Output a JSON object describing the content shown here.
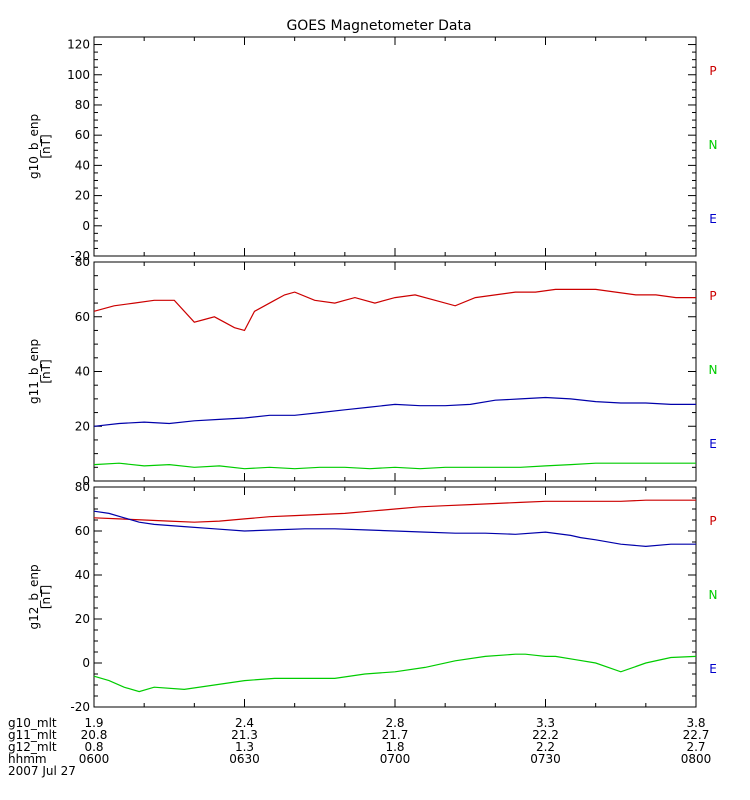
{
  "chart_data": [
    {
      "type": "line",
      "title": "GOES Magnetometer Data",
      "ylabel": "g10_b_enp",
      "yunit": "[nT]",
      "ylim": [
        -20,
        125
      ],
      "yticks": [
        -20,
        0,
        20,
        40,
        60,
        80,
        100,
        120
      ],
      "legend": [
        "P",
        "N",
        "E"
      ],
      "legend_placement": "right",
      "series": []
    },
    {
      "type": "line",
      "ylabel": "g11_b_enp",
      "yunit": "[nT]",
      "ylim": [
        0,
        80
      ],
      "yticks": [
        0,
        20,
        40,
        60,
        80
      ],
      "legend": [
        "P",
        "N",
        "E"
      ],
      "legend_placement": "right",
      "series": [
        {
          "name": "P",
          "color": "#cc0000",
          "x": [
            0,
            4,
            8,
            12,
            16,
            20,
            22,
            24,
            26,
            28,
            30,
            32,
            34,
            36,
            38,
            40,
            44,
            48,
            50,
            52,
            56,
            60,
            64,
            68,
            72,
            76,
            80,
            84,
            88,
            92,
            96,
            100,
            104,
            108,
            112,
            116,
            120
          ],
          "y": [
            62,
            64,
            65,
            66,
            66,
            58,
            59,
            60,
            58,
            56,
            55,
            62,
            64,
            66,
            68,
            69,
            66,
            65,
            66,
            67,
            65,
            67,
            68,
            66,
            64,
            67,
            68,
            69,
            69,
            70,
            70,
            70,
            69,
            68,
            68,
            67,
            67
          ]
        },
        {
          "name": "N",
          "color": "#00cc00",
          "x": [
            0,
            5,
            10,
            15,
            20,
            25,
            30,
            35,
            40,
            45,
            50,
            55,
            60,
            65,
            70,
            75,
            80,
            85,
            90,
            95,
            100,
            105,
            110,
            115,
            120
          ],
          "y": [
            6,
            6.5,
            5.5,
            6,
            5,
            5.5,
            4.5,
            5,
            4.5,
            5,
            5,
            4.5,
            5,
            4.5,
            5,
            5,
            5,
            5,
            5.5,
            6,
            6.5,
            6.5,
            6.5,
            6.5,
            6.5
          ]
        },
        {
          "name": "E",
          "color": "#0000aa",
          "x": [
            0,
            5,
            10,
            15,
            20,
            25,
            30,
            35,
            40,
            45,
            50,
            55,
            60,
            65,
            70,
            75,
            80,
            85,
            90,
            95,
            100,
            105,
            110,
            115,
            120
          ],
          "y": [
            20,
            21,
            21.5,
            21,
            22,
            22.5,
            23,
            24,
            24,
            25,
            26,
            27,
            28,
            27.5,
            27.5,
            28,
            29.5,
            30,
            30.5,
            30,
            29,
            28.5,
            28.5,
            28,
            28
          ]
        }
      ]
    },
    {
      "type": "line",
      "ylabel": "g12_b_enp",
      "yunit": "[nT]",
      "ylim": [
        -20,
        80
      ],
      "yticks": [
        -20,
        0,
        20,
        40,
        60,
        80
      ],
      "legend": [
        "P",
        "N",
        "E"
      ],
      "legend_placement": "right",
      "series": [
        {
          "name": "P",
          "color": "#cc0000",
          "x": [
            0,
            5,
            10,
            15,
            20,
            25,
            30,
            35,
            40,
            45,
            50,
            55,
            60,
            65,
            70,
            75,
            80,
            85,
            90,
            95,
            100,
            105,
            110,
            115,
            120
          ],
          "y": [
            66,
            65.5,
            65,
            64.5,
            64,
            64.5,
            65.5,
            66.5,
            67,
            67.5,
            68,
            69,
            70,
            71,
            71.5,
            72,
            72.5,
            73,
            73.5,
            73.5,
            73.5,
            73.5,
            74,
            74,
            74
          ]
        },
        {
          "name": "N",
          "color": "#00cc00",
          "x": [
            0,
            3,
            6,
            9,
            12,
            18,
            24,
            30,
            36,
            42,
            48,
            54,
            60,
            66,
            72,
            78,
            84,
            86,
            88,
            90,
            92,
            96,
            100,
            105,
            110,
            115,
            120
          ],
          "y": [
            -6,
            -8,
            -11,
            -13,
            -11,
            -12,
            -10,
            -8,
            -7,
            -7,
            -7,
            -5,
            -4,
            -2,
            1,
            3,
            4,
            4,
            3.5,
            3,
            3,
            1.5,
            0,
            -4,
            0,
            2.5,
            3
          ]
        },
        {
          "name": "E",
          "color": "#0000aa",
          "x": [
            0,
            3,
            6,
            9,
            12,
            18,
            24,
            30,
            36,
            42,
            48,
            54,
            60,
            66,
            72,
            78,
            84,
            90,
            95,
            97,
            100,
            105,
            110,
            115,
            120
          ],
          "y": [
            69,
            68,
            66,
            64,
            63,
            62,
            61,
            60,
            60.5,
            61,
            61,
            60.5,
            60,
            59.5,
            59,
            59,
            58.5,
            59.5,
            58,
            57,
            56,
            54,
            53,
            54,
            54
          ]
        }
      ]
    }
  ],
  "x_axis": {
    "rows": [
      {
        "label": "g10_mlt",
        "values": [
          "1.9",
          "2.4",
          "2.8",
          "3.3",
          "3.8"
        ]
      },
      {
        "label": "g11_mlt",
        "values": [
          "20.8",
          "21.3",
          "21.7",
          "22.2",
          "22.7"
        ]
      },
      {
        "label": "g12_mlt",
        "values": [
          "0.8",
          "1.3",
          "1.8",
          "2.2",
          "2.7"
        ]
      },
      {
        "label": "hhmm",
        "values": [
          "0600",
          "0630",
          "0700",
          "0730",
          "0800"
        ]
      }
    ],
    "date": "2007 Jul 27",
    "xlim_minutes": [
      0,
      120
    ],
    "major_ticks_minutes": [
      0,
      30,
      60,
      90,
      120
    ]
  }
}
